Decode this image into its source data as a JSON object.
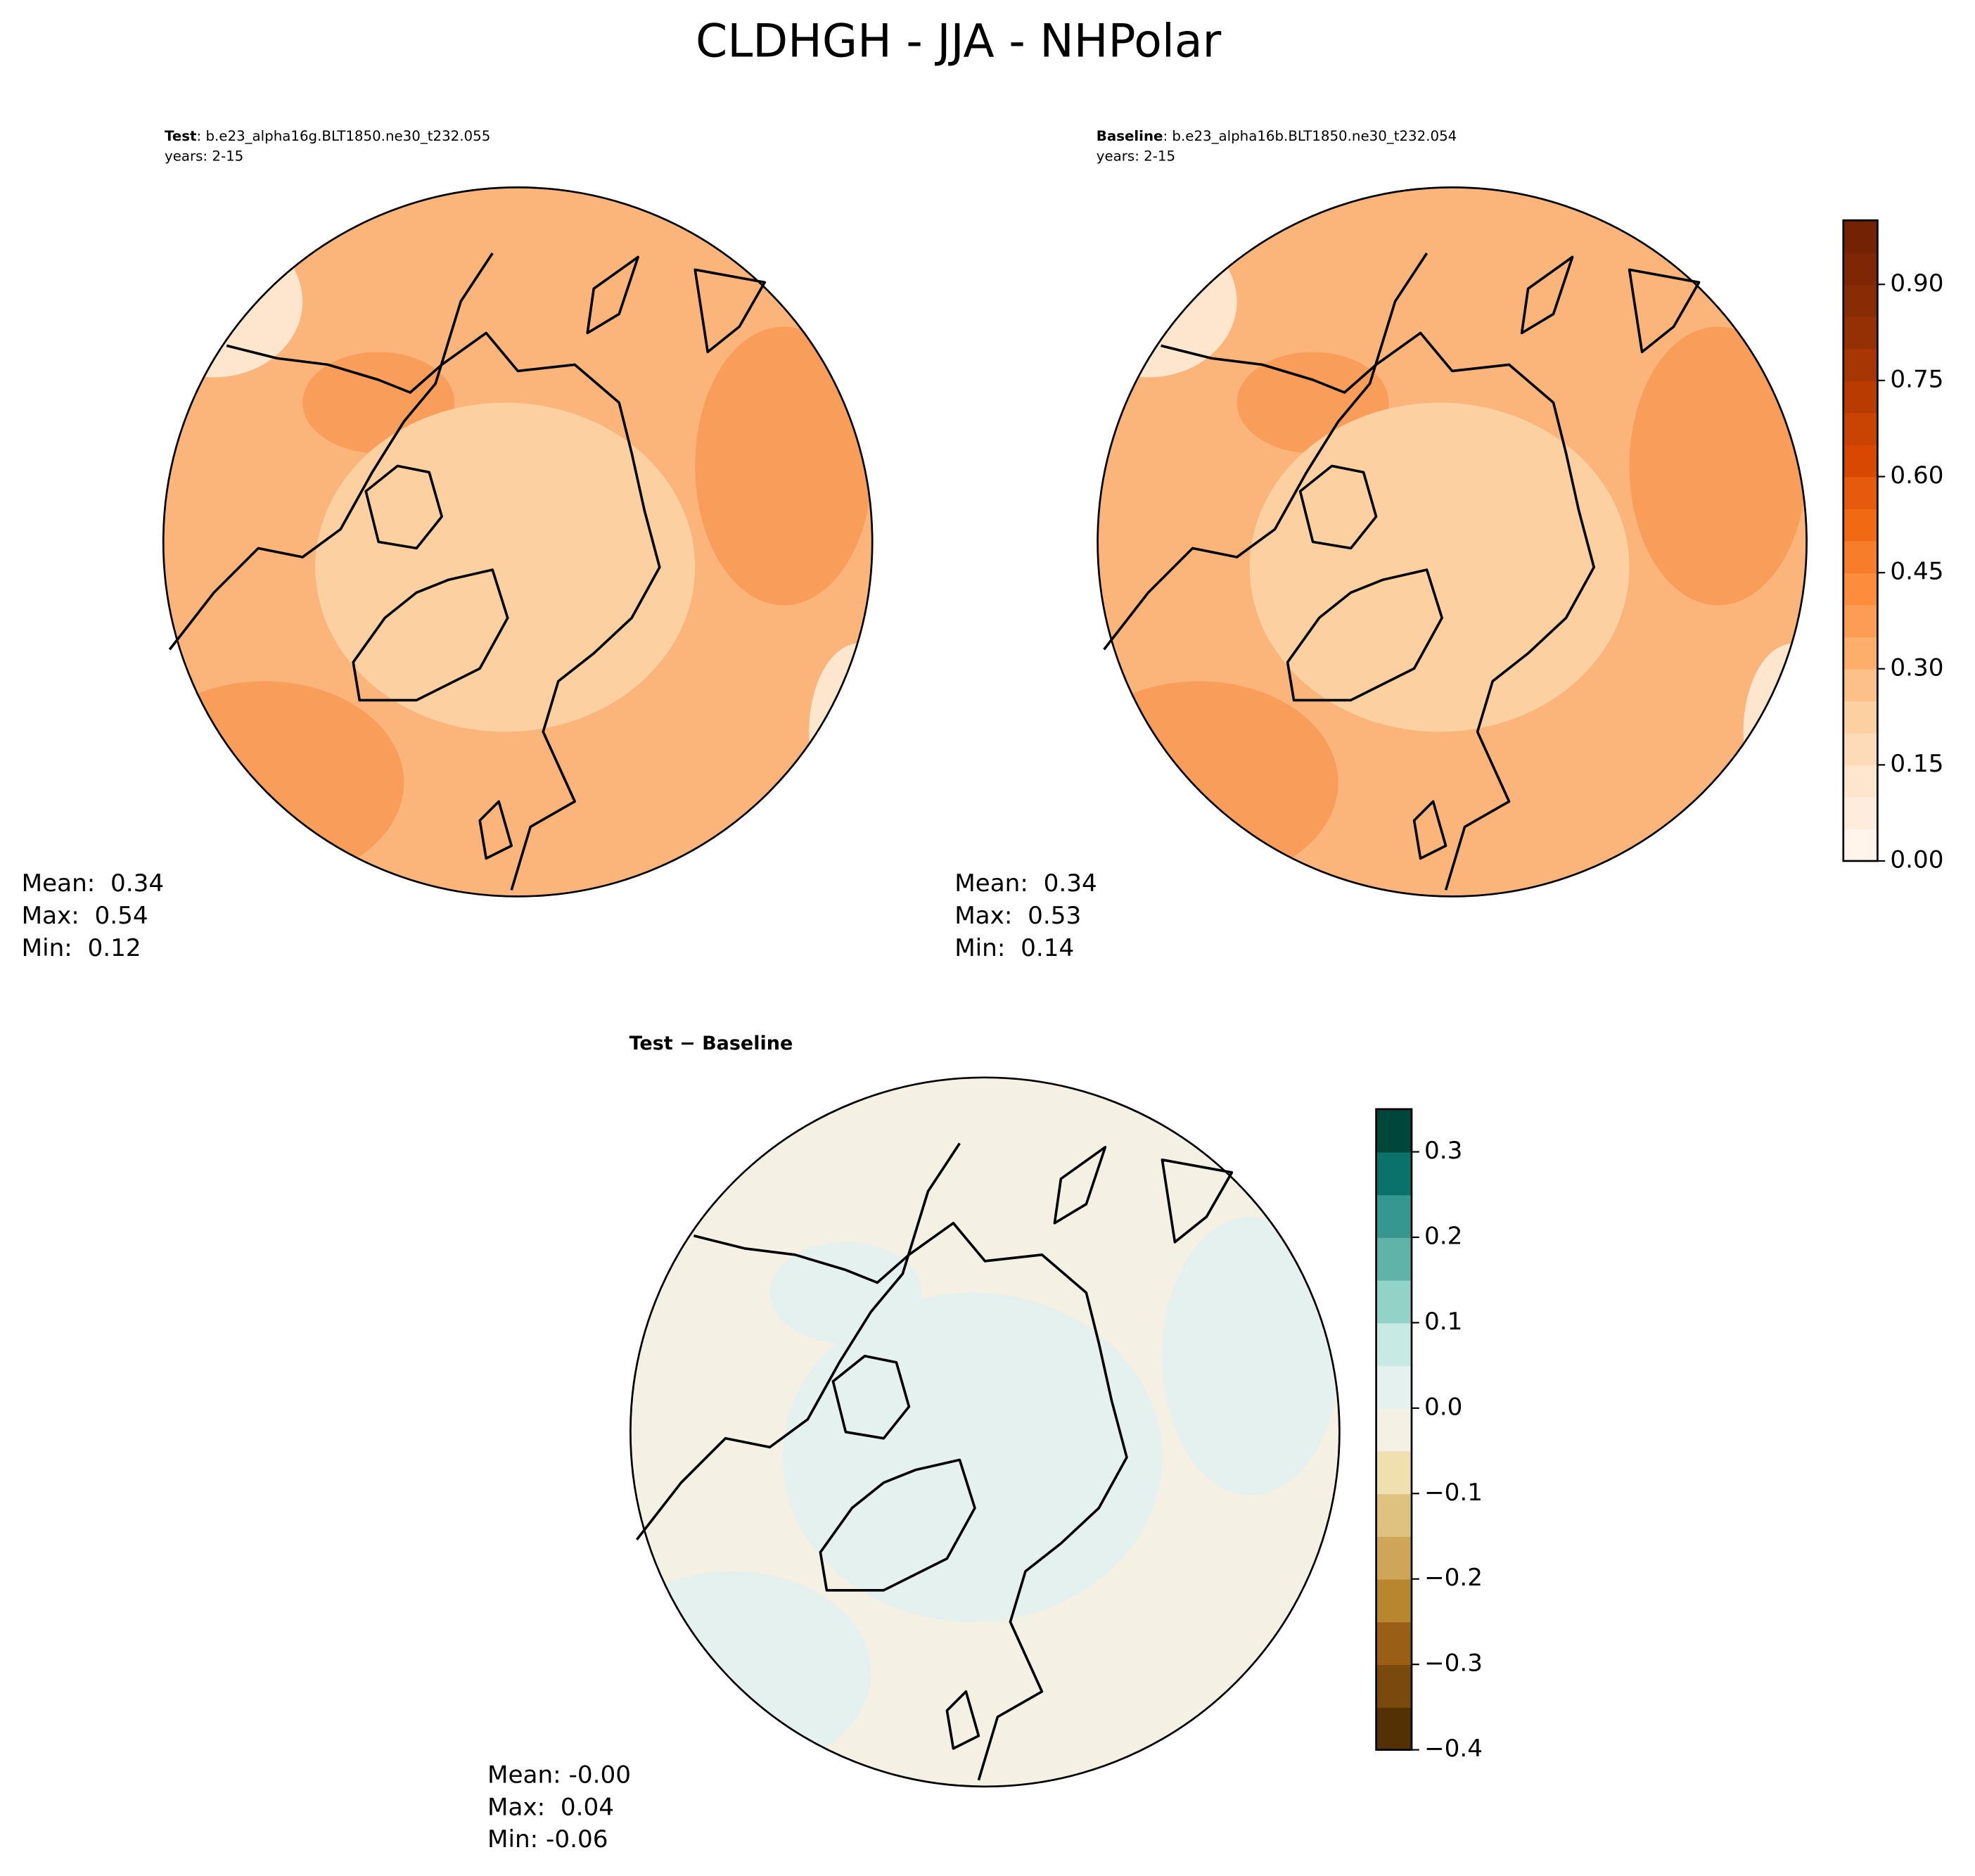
{
  "title": "CLDHGH - JJA - NHPolar",
  "panels": [
    {
      "case_label": "Test",
      "case_name": ": b.e23_alpha16g.BLT1850.ne30_t232.055",
      "years": "years: 2-15",
      "stats": [
        "Mean:  0.34",
        "Max:  0.54",
        "Min:  0.12"
      ],
      "map_colors": [
        "#fbb47a",
        "#f99d5a",
        "#fdd0a2",
        "#fee6ce"
      ]
    },
    {
      "case_label": "Baseline",
      "case_name": ": b.e23_alpha16b.BLT1850.ne30_t232.054",
      "years": "years: 2-15",
      "stats": [
        "Mean:  0.34",
        "Max:  0.53",
        "Min:  0.14"
      ],
      "map_colors": [
        "#fbb47a",
        "#f99d5a",
        "#fdd0a2",
        "#fee6ce"
      ]
    },
    {
      "case_label": "Test",
      "separator": " − ",
      "case_name": "Baseline",
      "stats": [
        "Mean: -0.00",
        "Max:  0.04",
        "Min: -0.06"
      ],
      "map_colors": [
        "#f5f0e4",
        "#e4f1ee",
        "#e4f1ee",
        "#f5f0e4"
      ]
    }
  ],
  "colorbars": [
    {
      "ylim": [
        0,
        1
      ],
      "yticks": [
        {
          "value": 0,
          "label": "0.00"
        },
        {
          "value": 0.15,
          "label": "0.15"
        },
        {
          "value": 0.3,
          "label": "0.30"
        },
        {
          "value": 0.45,
          "label": "0.45"
        },
        {
          "value": 0.6,
          "label": "0.60"
        },
        {
          "value": 0.75,
          "label": "0.75"
        },
        {
          "value": 0.9,
          "label": "0.90"
        }
      ],
      "colors": [
        "#fff5eb",
        "#feeddc",
        "#fee6ce",
        "#fddbb8",
        "#fdd0a2",
        "#fdc088",
        "#fdae6b",
        "#fd9d53",
        "#fd8d3c",
        "#f87d2b",
        "#f16913",
        "#e55a0d",
        "#d94801",
        "#c94402",
        "#b83c02",
        "#a63603",
        "#953004",
        "#872c04",
        "#7f2704",
        "#732303"
      ]
    },
    {
      "ylim": [
        -0.4,
        0.35
      ],
      "yticks": [
        {
          "value": -0.4,
          "label": "−0.4"
        },
        {
          "value": -0.3,
          "label": "−0.3"
        },
        {
          "value": -0.2,
          "label": "−0.2"
        },
        {
          "value": -0.1,
          "label": "−0.1"
        },
        {
          "value": 0,
          "label": "0.0"
        },
        {
          "value": 0.1,
          "label": "0.1"
        },
        {
          "value": 0.2,
          "label": "0.2"
        },
        {
          "value": 0.3,
          "label": "0.3"
        }
      ],
      "colors": [
        "#543005",
        "#7a4a0c",
        "#9a5e17",
        "#b8862f",
        "#cfa55a",
        "#dfc27d",
        "#f0e0b0",
        "#f5f0e4",
        "#e4f1ee",
        "#c7eae5",
        "#92d3c8",
        "#5fb3a9",
        "#35978f",
        "#0a7268",
        "#01463a"
      ]
    }
  ]
}
